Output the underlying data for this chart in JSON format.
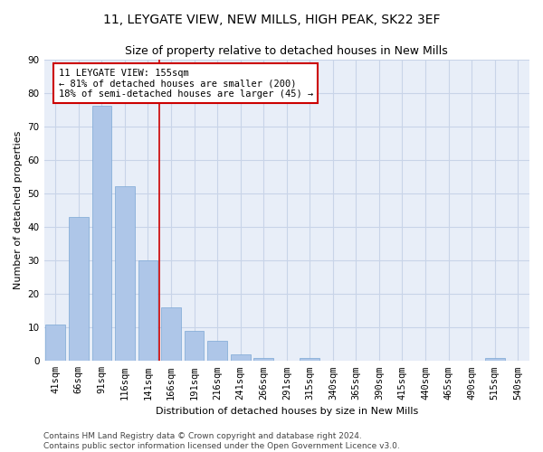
{
  "title": "11, LEYGATE VIEW, NEW MILLS, HIGH PEAK, SK22 3EF",
  "subtitle": "Size of property relative to detached houses in New Mills",
  "xlabel": "Distribution of detached houses by size in New Mills",
  "ylabel": "Number of detached properties",
  "categories": [
    "41sqm",
    "66sqm",
    "91sqm",
    "116sqm",
    "141sqm",
    "166sqm",
    "191sqm",
    "216sqm",
    "241sqm",
    "266sqm",
    "291sqm",
    "315sqm",
    "340sqm",
    "365sqm",
    "390sqm",
    "415sqm",
    "440sqm",
    "465sqm",
    "490sqm",
    "515sqm",
    "540sqm"
  ],
  "values": [
    11,
    43,
    76,
    52,
    30,
    16,
    9,
    6,
    2,
    1,
    0,
    1,
    0,
    0,
    0,
    0,
    0,
    0,
    0,
    1,
    0
  ],
  "bar_color": "#aec6e8",
  "bar_edge_color": "#7ba7d4",
  "vline_x": 4.5,
  "vline_color": "#cc0000",
  "annotation_line1": "11 LEYGATE VIEW: 155sqm",
  "annotation_line2": "← 81% of detached houses are smaller (200)",
  "annotation_line3": "18% of semi-detached houses are larger (45) →",
  "annotation_box_color": "#ffffff",
  "annotation_box_edge": "#cc0000",
  "ylim": [
    0,
    90
  ],
  "yticks": [
    0,
    10,
    20,
    30,
    40,
    50,
    60,
    70,
    80,
    90
  ],
  "grid_color": "#c8d4e8",
  "bg_color": "#e8eef8",
  "footer": "Contains HM Land Registry data © Crown copyright and database right 2024.\nContains public sector information licensed under the Open Government Licence v3.0.",
  "title_fontsize": 10,
  "subtitle_fontsize": 9,
  "axis_label_fontsize": 8,
  "tick_fontsize": 7.5,
  "annotation_fontsize": 7.5,
  "footer_fontsize": 6.5
}
